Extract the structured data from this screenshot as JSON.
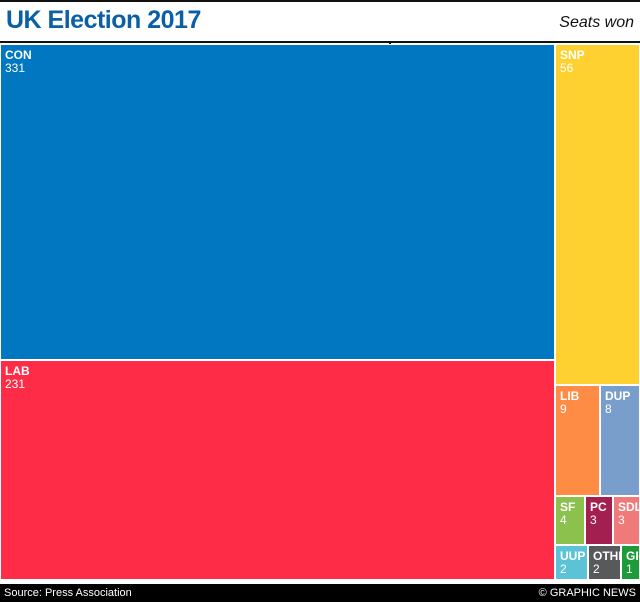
{
  "header": {
    "title": "UK Election 2017",
    "subtitle": "Seats won"
  },
  "footer": {
    "source": "Source: Press Association",
    "credit": "© GRAPHIC NEWS"
  },
  "chart_data": {
    "type": "treemap",
    "title": "UK Election 2017",
    "subtitle": "Seats won",
    "unit": "seats",
    "items": [
      {
        "label": "CON",
        "value": 331,
        "color": "#0077c0"
      },
      {
        "label": "LAB",
        "value": 231,
        "color": "#ff2c48"
      },
      {
        "label": "SNP",
        "value": 56,
        "color": "#fed130"
      },
      {
        "label": "LIB",
        "value": 9,
        "color": "#ff8c45"
      },
      {
        "label": "DUP",
        "value": 8,
        "color": "#7a9ecb"
      },
      {
        "label": "SF",
        "value": 4,
        "color": "#8cc14d"
      },
      {
        "label": "PC",
        "value": 3,
        "color": "#a31f50"
      },
      {
        "label": "SDL",
        "value": 3,
        "color": "#f07a7a"
      },
      {
        "label": "UUP",
        "value": 2,
        "color": "#5bc3d5"
      },
      {
        "label": "OTHE",
        "value": 2,
        "color": "#58595b"
      },
      {
        "label": "GI",
        "value": 1,
        "color": "#1d9a3a"
      }
    ]
  }
}
